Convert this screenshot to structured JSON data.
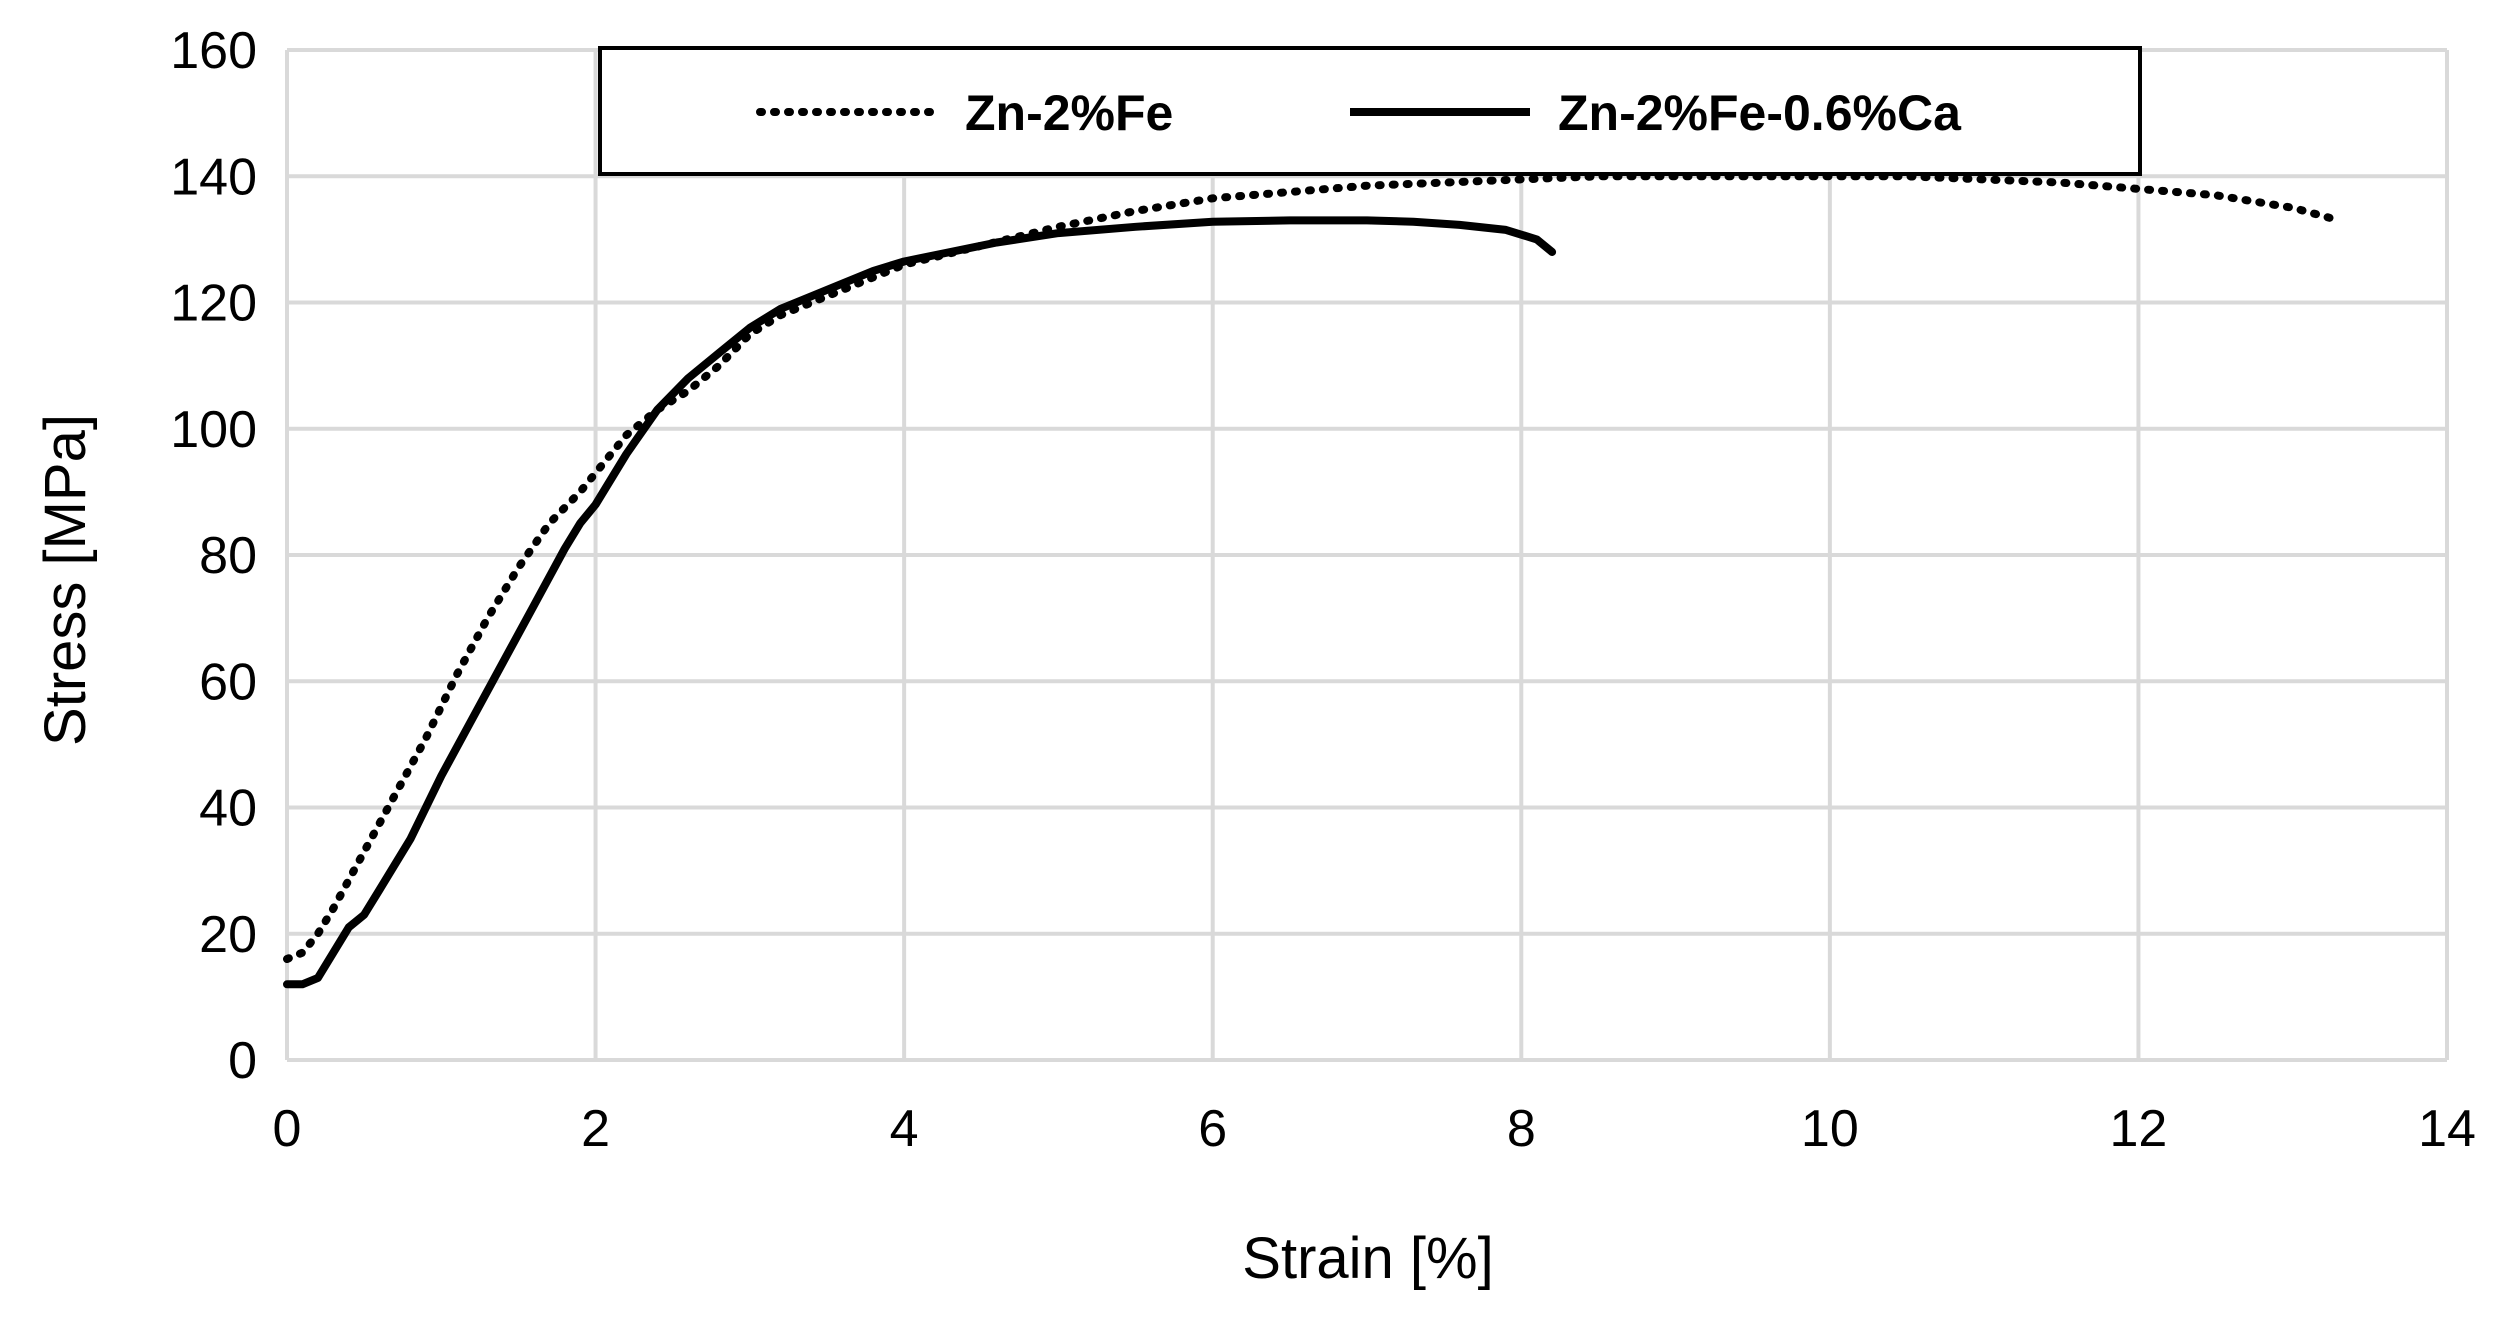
{
  "chart_data": {
    "type": "line",
    "title": "",
    "xlabel": "Strain [%]",
    "ylabel": "Stress [MPa]",
    "xlim": [
      0,
      14
    ],
    "ylim": [
      0,
      160
    ],
    "xticks": [
      "0",
      "2",
      "4",
      "6",
      "8",
      "10",
      "12",
      "14"
    ],
    "yticks": [
      "0",
      "20",
      "40",
      "60",
      "80",
      "100",
      "120",
      "140",
      "160"
    ],
    "grid": true,
    "legend_position": "top-center",
    "series": [
      {
        "name": "Zn-2%Fe",
        "style": "dotted",
        "color": "#000000",
        "x": [
          0,
          0.1,
          0.2,
          0.3,
          0.5,
          0.7,
          0.9,
          1.1,
          1.3,
          1.5,
          1.7,
          1.9,
          2.0,
          2.2,
          2.4,
          2.6,
          2.8,
          3.0,
          3.2,
          3.5,
          3.8,
          4.0,
          4.5,
          5.0,
          5.5,
          6.0,
          6.5,
          7.0,
          7.5,
          8.0,
          8.5,
          9.0,
          9.5,
          10.0,
          10.5,
          11.0,
          11.5,
          12.0,
          12.5,
          13.0,
          13.3
        ],
        "y": [
          16,
          17,
          20,
          24,
          33,
          42,
          51,
          61,
          70,
          78,
          85,
          90,
          93,
          99,
          103,
          106,
          110,
          115,
          118,
          121,
          124,
          126,
          129,
          132,
          134.5,
          136.5,
          137.5,
          138.5,
          139,
          139.5,
          140,
          140,
          140,
          140,
          140,
          139.5,
          139,
          138,
          137,
          135,
          133
        ]
      },
      {
        "name": "Zn-2%Fe-0.6%Ca",
        "style": "solid",
        "color": "#000000",
        "x": [
          0,
          0.1,
          0.2,
          0.3,
          0.4,
          0.5,
          0.6,
          0.8,
          1.0,
          1.2,
          1.4,
          1.6,
          1.8,
          1.9,
          2.0,
          2.2,
          2.4,
          2.6,
          2.8,
          3.0,
          3.2,
          3.4,
          3.6,
          3.8,
          4.0,
          4.3,
          4.6,
          5.0,
          5.5,
          6.0,
          6.5,
          7.0,
          7.3,
          7.6,
          7.9,
          8.1,
          8.2
        ],
        "y": [
          12,
          12,
          13,
          17,
          21,
          23,
          27,
          35,
          45,
          54,
          63,
          72,
          81,
          85,
          88,
          96,
          103,
          108,
          112,
          116,
          119,
          121,
          123,
          125,
          126.5,
          128,
          129.5,
          131,
          132,
          132.8,
          133,
          133,
          132.8,
          132.3,
          131.5,
          130,
          128
        ]
      }
    ]
  }
}
